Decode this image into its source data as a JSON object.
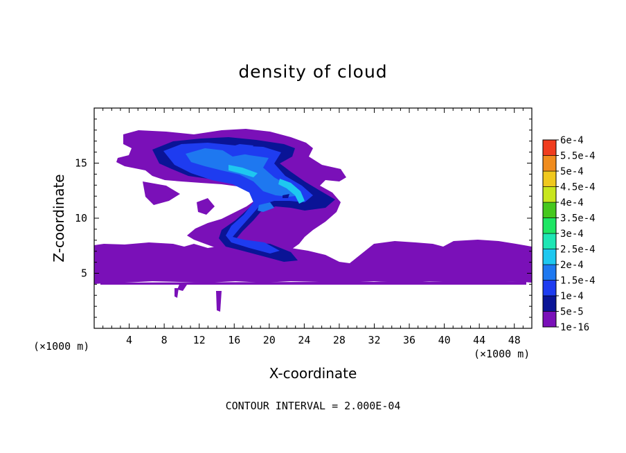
{
  "chart_data": {
    "type": "heatmap",
    "title": "density of cloud",
    "xlabel": "X-coordinate",
    "ylabel": "Z-coordinate",
    "x_unit": "(×1000 m)",
    "y_unit": "(×1000 m)",
    "xlim": [
      0,
      50
    ],
    "ylim": [
      0,
      20
    ],
    "x_ticks": [
      4,
      8,
      12,
      16,
      20,
      24,
      28,
      32,
      36,
      40,
      44,
      48
    ],
    "y_ticks": [
      5,
      10,
      15
    ],
    "footnote": "CONTOUR INTERVAL = 2.000E-04",
    "colorbar": {
      "levels": [
        "1e-16",
        "5e-5",
        "1e-4",
        "1.5e-4",
        "2e-4",
        "2.5e-4",
        "3e-4",
        "3.5e-4",
        "4e-4",
        "4.5e-4",
        "5e-4",
        "5.5e-4",
        "6e-4"
      ],
      "colors": [
        "#7a10b8",
        "#0a1496",
        "#1e3cf0",
        "#1e78f0",
        "#1ec8f0",
        "#1ee6b4",
        "#1ee664",
        "#46c81e",
        "#c8e61e",
        "#f0c81e",
        "#f08c1e",
        "#f03c1e",
        "#f07878"
      ]
    }
  }
}
